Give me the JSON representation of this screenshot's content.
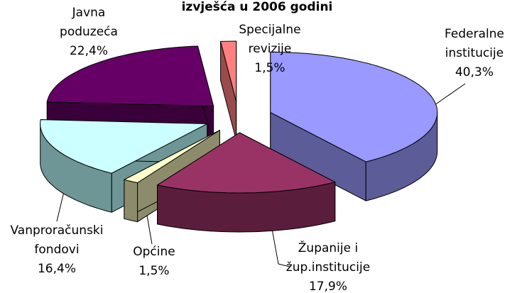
{
  "chart_data": {
    "type": "pie3d",
    "title": "izvješća u 2006 godini",
    "categories": [
      [
        "Federalne",
        "institucije"
      ],
      [
        "Županije i",
        "žup.institucije"
      ],
      [
        "Općine"
      ],
      [
        "Vanproračunski",
        "fondovi"
      ],
      [
        "Javna",
        "poduzeća"
      ],
      [
        "Specijalne",
        "revizije"
      ]
    ],
    "values": [
      40.3,
      17.9,
      1.5,
      16.4,
      22.4,
      1.5
    ],
    "value_labels": [
      "40,3%",
      "17,9%",
      "1,5%",
      "16,4%",
      "22,4%",
      "1,5%"
    ],
    "colors": [
      "#9999ff",
      "#993366",
      "#ffffcc",
      "#ccffff",
      "#660066",
      "#ff8080"
    ],
    "side_colors": [
      "#5c5c99",
      "#5a1e3c",
      "#8c8c6c",
      "#6f9696",
      "#3a003a",
      "#9a4c4c"
    ]
  }
}
